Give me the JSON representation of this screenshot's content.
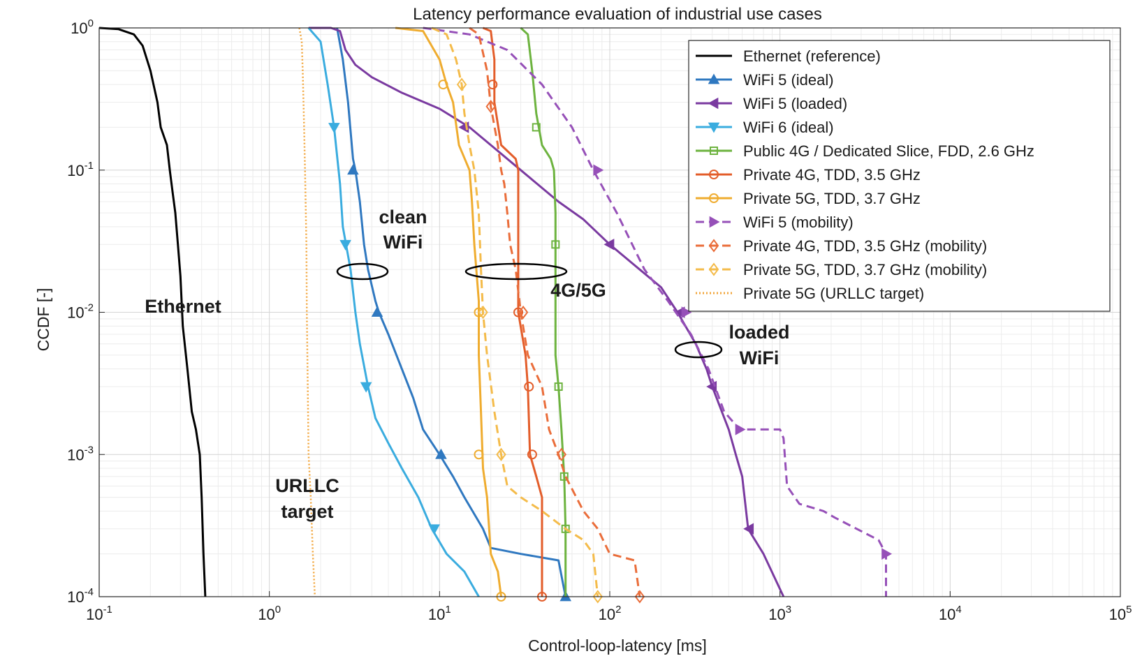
{
  "chart_data": {
    "type": "line",
    "title": "Latency performance evaluation of industrial use cases",
    "xlabel": "Control-loop-latency [ms]",
    "ylabel": "CCDF [-]",
    "xscale": "log",
    "yscale": "log",
    "xlim": [
      0.1,
      100000
    ],
    "ylim": [
      0.0001,
      1
    ],
    "grid": true,
    "legend_position": "top-right",
    "x_ticks": [
      {
        "base": "10",
        "exp": "-1",
        "value": 0.1
      },
      {
        "base": "10",
        "exp": "0",
        "value": 1
      },
      {
        "base": "10",
        "exp": "1",
        "value": 10
      },
      {
        "base": "10",
        "exp": "2",
        "value": 100
      },
      {
        "base": "10",
        "exp": "3",
        "value": 1000
      },
      {
        "base": "10",
        "exp": "4",
        "value": 10000
      },
      {
        "base": "10",
        "exp": "5",
        "value": 100000
      }
    ],
    "y_ticks": [
      {
        "base": "10",
        "exp": "0",
        "value": 1
      },
      {
        "base": "10",
        "exp": "-1",
        "value": 0.1
      },
      {
        "base": "10",
        "exp": "-2",
        "value": 0.01
      },
      {
        "base": "10",
        "exp": "-3",
        "value": 0.001
      },
      {
        "base": "10",
        "exp": "-4",
        "value": 0.0001
      }
    ],
    "series": [
      {
        "name": "Ethernet (reference)",
        "color": "#000000",
        "dash": "solid",
        "marker": "none",
        "points": [
          [
            0.1,
            1
          ],
          [
            0.13,
            0.98
          ],
          [
            0.16,
            0.9
          ],
          [
            0.18,
            0.75
          ],
          [
            0.2,
            0.5
          ],
          [
            0.22,
            0.3
          ],
          [
            0.23,
            0.2
          ],
          [
            0.25,
            0.15
          ],
          [
            0.26,
            0.1
          ],
          [
            0.27,
            0.07
          ],
          [
            0.28,
            0.05
          ],
          [
            0.29,
            0.03
          ],
          [
            0.3,
            0.018
          ],
          [
            0.31,
            0.008
          ],
          [
            0.33,
            0.004
          ],
          [
            0.35,
            0.002
          ],
          [
            0.37,
            0.0015
          ],
          [
            0.39,
            0.001
          ],
          [
            0.4,
            0.0005
          ],
          [
            0.41,
            0.0002
          ],
          [
            0.42,
            0.0001
          ]
        ]
      },
      {
        "name": "WiFi 5 (ideal)",
        "color": "#2f78c0",
        "dash": "solid",
        "marker": "triangle-up",
        "points": [
          [
            2.5,
            1
          ],
          [
            2.7,
            0.6
          ],
          [
            2.9,
            0.3
          ],
          [
            3.1,
            0.12
          ],
          [
            3.2,
            0.1
          ],
          [
            3.4,
            0.06
          ],
          [
            3.6,
            0.03
          ],
          [
            3.8,
            0.02
          ],
          [
            4.2,
            0.012
          ],
          [
            4.4,
            0.01
          ],
          [
            5,
            0.007
          ],
          [
            6,
            0.004
          ],
          [
            7,
            0.0025
          ],
          [
            8,
            0.0015
          ],
          [
            10,
            0.001
          ],
          [
            12,
            0.0007
          ],
          [
            14,
            0.0005
          ],
          [
            18,
            0.0003
          ],
          [
            20,
            0.00022
          ],
          [
            30,
            0.0002
          ],
          [
            50,
            0.00018
          ],
          [
            55,
            0.0001
          ]
        ],
        "marker_points": [
          [
            3.1,
            0.1
          ],
          [
            4.3,
            0.01
          ],
          [
            10.2,
            0.001
          ],
          [
            55,
            0.0001
          ]
        ]
      },
      {
        "name": "WiFi 5 (loaded)",
        "color": "#7a3aa0",
        "dash": "solid",
        "marker": "triangle-left",
        "points": [
          [
            1.7,
            1
          ],
          [
            2.3,
            1
          ],
          [
            2.6,
            0.95
          ],
          [
            2.8,
            0.7
          ],
          [
            3.2,
            0.55
          ],
          [
            4,
            0.45
          ],
          [
            6,
            0.35
          ],
          [
            10,
            0.27
          ],
          [
            15,
            0.2
          ],
          [
            20,
            0.15
          ],
          [
            30,
            0.1
          ],
          [
            50,
            0.06
          ],
          [
            70,
            0.045
          ],
          [
            100,
            0.03
          ],
          [
            150,
            0.02
          ],
          [
            200,
            0.015
          ],
          [
            250,
            0.01
          ],
          [
            320,
            0.006
          ],
          [
            370,
            0.004
          ],
          [
            400,
            0.003
          ],
          [
            500,
            0.0015
          ],
          [
            550,
            0.001
          ],
          [
            600,
            0.0007
          ],
          [
            650,
            0.0003
          ],
          [
            800,
            0.0002
          ],
          [
            1050,
            0.0001
          ]
        ],
        "marker_points": [
          [
            14,
            0.2
          ],
          [
            100,
            0.03
          ],
          [
            260,
            0.01
          ],
          [
            400,
            0.003
          ],
          [
            660,
            0.0003
          ]
        ]
      },
      {
        "name": "WiFi 6 (ideal)",
        "color": "#3aacdf",
        "dash": "solid",
        "marker": "triangle-down",
        "points": [
          [
            1.7,
            1
          ],
          [
            2,
            0.8
          ],
          [
            2.2,
            0.4
          ],
          [
            2.4,
            0.2
          ],
          [
            2.6,
            0.08
          ],
          [
            2.7,
            0.04
          ],
          [
            2.9,
            0.025
          ],
          [
            3.0,
            0.02
          ],
          [
            3.2,
            0.01
          ],
          [
            3.4,
            0.006
          ],
          [
            3.8,
            0.003
          ],
          [
            4.2,
            0.0018
          ],
          [
            5,
            0.0012
          ],
          [
            6,
            0.0008
          ],
          [
            7.5,
            0.0005
          ],
          [
            9,
            0.0003
          ],
          [
            11,
            0.0002
          ],
          [
            14,
            0.00015
          ],
          [
            17,
            0.0001
          ]
        ],
        "marker_points": [
          [
            2.4,
            0.2
          ],
          [
            2.8,
            0.03
          ],
          [
            3.7,
            0.003
          ],
          [
            9.3,
            0.0003
          ]
        ]
      },
      {
        "name": "Public 4G / Dedicated Slice, FDD, 2.6 GHz",
        "color": "#6db33f",
        "dash": "solid",
        "marker": "square",
        "points": [
          [
            30,
            1
          ],
          [
            33,
            0.9
          ],
          [
            35,
            0.5
          ],
          [
            37,
            0.25
          ],
          [
            40,
            0.15
          ],
          [
            45,
            0.12
          ],
          [
            47,
            0.1
          ],
          [
            48,
            0.05
          ],
          [
            48,
            0.005
          ],
          [
            50,
            0.003
          ],
          [
            52,
            0.0015
          ],
          [
            54,
            0.0007
          ],
          [
            55,
            0.0003
          ],
          [
            55,
            0.0001
          ]
        ],
        "marker_points": [
          [
            37,
            0.2
          ],
          [
            48,
            0.03
          ],
          [
            50,
            0.003
          ],
          [
            54,
            0.0007
          ],
          [
            55,
            0.0003
          ]
        ]
      },
      {
        "name": "Private 4G, TDD, 3.5 GHz",
        "color": "#e35d2a",
        "dash": "solid",
        "marker": "circle",
        "points": [
          [
            18,
            1
          ],
          [
            20,
            0.95
          ],
          [
            21,
            0.6
          ],
          [
            21,
            0.3
          ],
          [
            23,
            0.15
          ],
          [
            28,
            0.12
          ],
          [
            29,
            0.1
          ],
          [
            29,
            0.01
          ],
          [
            32,
            0.005
          ],
          [
            33,
            0.003
          ],
          [
            34,
            0.001
          ],
          [
            37,
            0.0007
          ],
          [
            40,
            0.0005
          ],
          [
            40,
            0.0001
          ]
        ],
        "marker_points": [
          [
            20.5,
            0.4
          ],
          [
            29,
            0.01
          ],
          [
            33.5,
            0.003
          ],
          [
            35,
            0.001
          ],
          [
            40,
            0.0001
          ]
        ]
      },
      {
        "name": "Private 5G, TDD, 3.7 GHz",
        "color": "#efac2f",
        "dash": "solid",
        "marker": "circle",
        "points": [
          [
            5.5,
            1
          ],
          [
            8,
            0.95
          ],
          [
            10,
            0.6
          ],
          [
            11,
            0.4
          ],
          [
            12,
            0.3
          ],
          [
            13,
            0.15
          ],
          [
            15,
            0.1
          ],
          [
            15.5,
            0.06
          ],
          [
            16,
            0.03
          ],
          [
            17,
            0.012
          ],
          [
            17,
            0.005
          ],
          [
            17.5,
            0.002
          ],
          [
            18,
            0.0008
          ],
          [
            19,
            0.0005
          ],
          [
            20,
            0.0002
          ],
          [
            22,
            0.00015
          ],
          [
            23,
            0.0001
          ]
        ],
        "marker_points": [
          [
            10.5,
            0.4
          ],
          [
            17,
            0.01
          ],
          [
            17,
            0.001
          ],
          [
            23,
            0.0001
          ]
        ]
      },
      {
        "name": "WiFi 5 (mobility)",
        "color": "#9650b8",
        "dash": "dashed",
        "marker": "triangle-right",
        "points": [
          [
            8,
            1
          ],
          [
            15,
            0.9
          ],
          [
            25,
            0.7
          ],
          [
            40,
            0.4
          ],
          [
            60,
            0.2
          ],
          [
            80,
            0.1
          ],
          [
            110,
            0.05
          ],
          [
            160,
            0.02
          ],
          [
            220,
            0.012
          ],
          [
            300,
            0.007
          ],
          [
            380,
            0.004
          ],
          [
            470,
            0.002
          ],
          [
            580,
            0.0015
          ],
          [
            1000,
            0.0015
          ],
          [
            1050,
            0.0013
          ],
          [
            1100,
            0.0006
          ],
          [
            1300,
            0.00045
          ],
          [
            1800,
            0.0004
          ],
          [
            2100,
            0.00036
          ],
          [
            3800,
            0.00025
          ],
          [
            4200,
            0.0002
          ],
          [
            4200,
            0.0001
          ]
        ],
        "marker_points": [
          [
            85,
            0.1
          ],
          [
            280,
            0.01
          ],
          [
            580,
            0.0015
          ],
          [
            4200,
            0.0002
          ]
        ]
      },
      {
        "name": "Private 4G, TDD, 3.5 GHz (mobility)",
        "color": "#ea6d3a",
        "dash": "dashed",
        "marker": "diamond",
        "points": [
          [
            15,
            1
          ],
          [
            17,
            0.9
          ],
          [
            19,
            0.5
          ],
          [
            20,
            0.28
          ],
          [
            22,
            0.15
          ],
          [
            23,
            0.1
          ],
          [
            24,
            0.08
          ],
          [
            25,
            0.05
          ],
          [
            26,
            0.03
          ],
          [
            28,
            0.02
          ],
          [
            30,
            0.01
          ],
          [
            33,
            0.005
          ],
          [
            40,
            0.003
          ],
          [
            44,
            0.0015
          ],
          [
            50,
            0.001
          ],
          [
            55,
            0.0007
          ],
          [
            70,
            0.0004
          ],
          [
            85,
            0.0003
          ],
          [
            100,
            0.0002
          ],
          [
            140,
            0.00018
          ],
          [
            150,
            0.0001
          ]
        ],
        "marker_points": [
          [
            20,
            0.28
          ],
          [
            31,
            0.01
          ],
          [
            52,
            0.001
          ],
          [
            150,
            0.0001
          ]
        ]
      },
      {
        "name": "Private 5G, TDD, 3.7 GHz (mobility)",
        "color": "#f4bb4a",
        "dash": "dashed",
        "marker": "diamond",
        "points": [
          [
            9,
            1
          ],
          [
            11,
            0.9
          ],
          [
            12.5,
            0.6
          ],
          [
            13.5,
            0.4
          ],
          [
            14,
            0.25
          ],
          [
            15,
            0.15
          ],
          [
            16,
            0.1
          ],
          [
            17,
            0.05
          ],
          [
            17.5,
            0.02
          ],
          [
            18,
            0.01
          ],
          [
            19,
            0.005
          ],
          [
            21,
            0.002
          ],
          [
            23,
            0.001
          ],
          [
            25,
            0.0006
          ],
          [
            30,
            0.0005
          ],
          [
            40,
            0.0004
          ],
          [
            55,
            0.0003
          ],
          [
            70,
            0.00025
          ],
          [
            80,
            0.0002
          ],
          [
            85,
            0.0001
          ]
        ],
        "marker_points": [
          [
            13.5,
            0.4
          ],
          [
            18,
            0.01
          ],
          [
            23,
            0.001
          ],
          [
            85,
            0.0001
          ]
        ]
      },
      {
        "name": "Private 5G (URLLC target)",
        "color": "#f2a53a",
        "dash": "dotted",
        "marker": "none",
        "points": [
          [
            1.5,
            1
          ],
          [
            1.55,
            0.8
          ],
          [
            1.57,
            0.5
          ],
          [
            1.6,
            0.2
          ],
          [
            1.62,
            0.1
          ],
          [
            1.65,
            0.03
          ],
          [
            1.66,
            0.01
          ],
          [
            1.68,
            0.003
          ],
          [
            1.7,
            0.001
          ],
          [
            1.75,
            0.0005
          ],
          [
            1.8,
            0.0002
          ],
          [
            1.85,
            0.0001
          ]
        ]
      }
    ],
    "annotations": [
      {
        "text": "Ethernet"
      },
      {
        "text": "clean"
      },
      {
        "text": "WiFi"
      },
      {
        "text": "4G/5G"
      },
      {
        "text": "loaded"
      },
      {
        "text": "WiFi"
      },
      {
        "text": "URLLC"
      },
      {
        "text": "target"
      }
    ]
  }
}
